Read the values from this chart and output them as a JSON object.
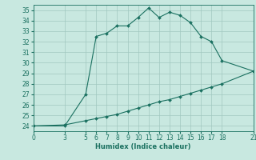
{
  "xlabel": "Humidex (Indice chaleur)",
  "ylabel": "",
  "bg_color": "#c8e8e0",
  "grid_color": "#a0c8c0",
  "line_color": "#1a7060",
  "curve1_x": [
    0,
    3,
    5,
    6,
    7,
    8,
    9,
    10,
    11,
    12,
    13,
    14,
    15,
    16,
    17,
    18,
    21
  ],
  "curve1_y": [
    24,
    24,
    27,
    32.5,
    32.8,
    33.5,
    33.5,
    34.3,
    35.2,
    34.3,
    34.8,
    34.5,
    33.8,
    32.5,
    32.0,
    30.2,
    29.2
  ],
  "curve2_x": [
    0,
    3,
    5,
    6,
    7,
    8,
    9,
    10,
    11,
    12,
    13,
    14,
    15,
    16,
    17,
    18,
    21
  ],
  "curve2_y": [
    24,
    24.1,
    24.5,
    24.7,
    24.9,
    25.1,
    25.4,
    25.7,
    26.0,
    26.3,
    26.5,
    26.8,
    27.1,
    27.4,
    27.7,
    28.0,
    29.2
  ],
  "ylim": [
    23.5,
    35.5
  ],
  "xlim": [
    0,
    21
  ],
  "xticks": [
    0,
    3,
    5,
    6,
    7,
    8,
    9,
    10,
    11,
    12,
    13,
    14,
    15,
    16,
    17,
    18,
    21
  ],
  "yticks": [
    24,
    25,
    26,
    27,
    28,
    29,
    30,
    31,
    32,
    33,
    34,
    35
  ],
  "tick_fontsize": 5.5,
  "xlabel_fontsize": 6.0,
  "marker_size": 2.0,
  "linewidth": 0.8
}
